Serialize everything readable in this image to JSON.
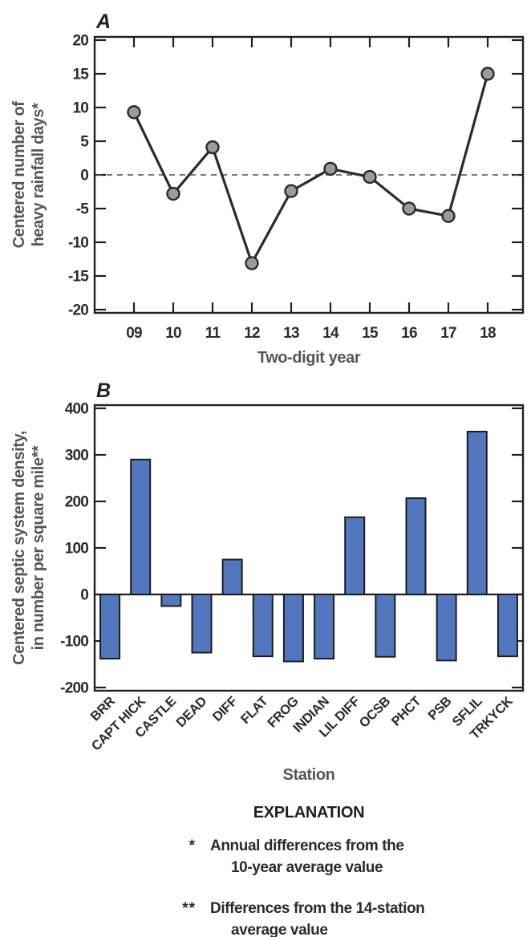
{
  "figure": {
    "background": "#ffffff",
    "explanation": {
      "title": "EXPLANATION",
      "items": [
        {
          "symbol": "*",
          "lines": [
            "Annual differences from the",
            "10-year average value"
          ]
        },
        {
          "symbol": "**",
          "lines": [
            "Differences from the 14-station",
            "average value"
          ]
        }
      ]
    }
  },
  "chart_data": [
    {
      "type": "line",
      "panel_label": "A",
      "x": [
        "09",
        "10",
        "11",
        "12",
        "13",
        "14",
        "15",
        "16",
        "17",
        "18"
      ],
      "values": [
        9.3,
        -2.8,
        4.1,
        -13.1,
        -2.4,
        0.9,
        -0.3,
        -5.0,
        -6.1,
        15.0
      ],
      "xlabel": "Two-digit year",
      "ylabel_lines": [
        "Centered number of",
        "heavy rainfall days*"
      ],
      "ylim": [
        -20,
        20
      ],
      "yticks": [
        20,
        15,
        10,
        5,
        0,
        -5,
        -10,
        -15,
        -20
      ],
      "grid": false,
      "zero_line_style": "dashed",
      "line_color": "#2e2a2b",
      "marker_fill": "#9b9b9b",
      "marker_stroke": "#2e2a2b",
      "axis_color": "#231f20",
      "tick_label_color": "#2e2a2b",
      "axis_title_color": "#55565a",
      "zero_line_color": "#4f4f4f"
    },
    {
      "type": "bar",
      "panel_label": "B",
      "categories": [
        "BRR",
        "CAPT HICK",
        "CASTLE",
        "DEAD",
        "DIFF",
        "FLAT",
        "FROG",
        "INDIAN",
        "LIL DIFF",
        "OCSB",
        "PHCT",
        "PSB",
        "SFLIL",
        "TRKYCK"
      ],
      "values": [
        -138,
        290,
        -25,
        -125,
        75,
        -133,
        -144,
        -138,
        166,
        -134,
        207,
        -142,
        350,
        -133
      ],
      "xlabel": "Station",
      "ylabel_lines": [
        "Centered septic system density,",
        "in number per square mile**"
      ],
      "ylim": [
        -200,
        400
      ],
      "yticks": [
        400,
        300,
        200,
        100,
        0,
        -100,
        -200
      ],
      "grid": false,
      "zero_line_style": "solid",
      "bar_fill": "#5377bf",
      "bar_stroke": "#1d1d1b",
      "axis_color": "#231f20",
      "tick_label_color": "#2e2a2b",
      "axis_title_color": "#55565a"
    }
  ]
}
